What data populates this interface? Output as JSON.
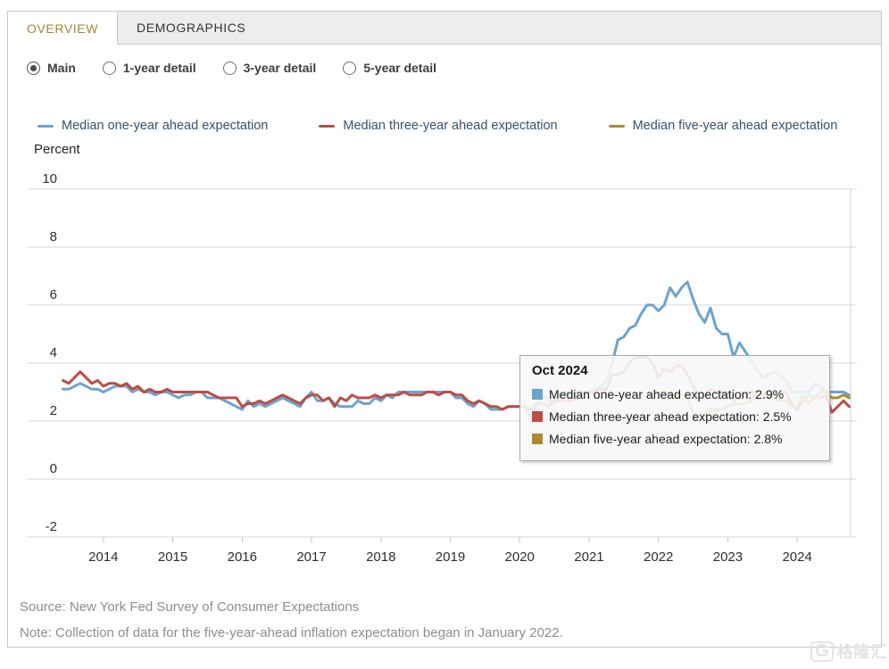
{
  "tabs": [
    {
      "label": "OVERVIEW",
      "active": true
    },
    {
      "label": "DEMOGRAPHICS",
      "active": false
    }
  ],
  "view_options": {
    "selected": "Main",
    "options": [
      "Main",
      "1-year detail",
      "3-year detail",
      "5-year detail"
    ]
  },
  "colors": {
    "active_tab_text": "#a98336",
    "tab_text": "#333333",
    "legend_text": "#36536e",
    "grid": "#d9d9d9",
    "axis_text": "#2e2e2e",
    "footer_text": "#8d8d8d",
    "tooltip_bg": "rgba(247,247,247,0.9)"
  },
  "chart_data": {
    "type": "line",
    "title": "",
    "xlabel": "",
    "ylabel": "Percent",
    "x_unit": "month",
    "x_start": "2013-06",
    "x_end": "2024-10",
    "xticks": [
      2014,
      2015,
      2016,
      2017,
      2018,
      2019,
      2020,
      2021,
      2022,
      2023,
      2024
    ],
    "yticks": [
      10,
      8,
      6,
      4,
      2,
      0,
      -2
    ],
    "ylim": [
      -2,
      10
    ],
    "grid": true,
    "legend_position": "top",
    "series": [
      {
        "key": "one-year",
        "name": "Median one-year ahead expectation",
        "color": "#6ba4ce",
        "start_index": 0,
        "values": [
          3.1,
          3.1,
          3.2,
          3.3,
          3.2,
          3.1,
          3.1,
          3.0,
          3.1,
          3.2,
          3.2,
          3.2,
          3.0,
          3.1,
          3.0,
          3.0,
          2.9,
          3.0,
          3.0,
          2.9,
          2.8,
          2.9,
          2.9,
          3.0,
          3.0,
          2.8,
          2.8,
          2.8,
          2.7,
          2.6,
          2.5,
          2.4,
          2.7,
          2.5,
          2.6,
          2.5,
          2.6,
          2.7,
          2.8,
          2.7,
          2.6,
          2.5,
          2.8,
          3.0,
          2.7,
          2.7,
          2.8,
          2.6,
          2.5,
          2.5,
          2.5,
          2.7,
          2.6,
          2.6,
          2.8,
          2.7,
          2.9,
          2.8,
          3.0,
          3.0,
          3.0,
          3.0,
          3.0,
          3.0,
          3.0,
          3.0,
          3.0,
          3.0,
          2.8,
          2.8,
          2.6,
          2.5,
          2.7,
          2.6,
          2.4,
          2.4,
          2.4,
          2.5,
          2.5,
          2.5,
          2.5,
          2.1,
          2.6,
          2.9,
          2.7,
          2.7,
          2.9,
          3.0,
          2.9,
          3.0,
          3.0,
          3.0,
          3.1,
          3.2,
          3.4,
          4.0,
          4.8,
          4.9,
          5.2,
          5.3,
          5.7,
          6.0,
          6.0,
          5.8,
          6.0,
          6.6,
          6.3,
          6.6,
          6.8,
          6.2,
          5.7,
          5.4,
          5.9,
          5.2,
          5.0,
          5.0,
          4.2,
          4.7,
          4.4,
          4.1,
          3.8,
          3.5,
          3.6,
          3.7,
          3.6,
          3.4,
          3.0,
          3.0,
          3.0,
          3.0,
          3.3,
          3.2,
          3.0,
          3.0,
          3.0,
          3.0,
          2.9
        ]
      },
      {
        "key": "three-year",
        "name": "Median three-year ahead expectation",
        "color": "#bd4c46",
        "start_index": 0,
        "values": [
          3.4,
          3.3,
          3.5,
          3.7,
          3.5,
          3.3,
          3.4,
          3.2,
          3.3,
          3.3,
          3.2,
          3.3,
          3.1,
          3.2,
          3.0,
          3.1,
          3.0,
          3.0,
          3.1,
          3.0,
          3.0,
          3.0,
          3.0,
          3.0,
          3.0,
          3.0,
          2.9,
          2.8,
          2.8,
          2.8,
          2.8,
          2.5,
          2.6,
          2.6,
          2.7,
          2.6,
          2.7,
          2.8,
          2.9,
          2.8,
          2.7,
          2.6,
          2.8,
          2.9,
          2.9,
          2.7,
          2.8,
          2.5,
          2.8,
          2.7,
          2.9,
          2.8,
          2.8,
          2.8,
          2.9,
          2.8,
          2.9,
          2.9,
          2.9,
          3.0,
          2.9,
          2.9,
          2.9,
          3.0,
          3.0,
          2.9,
          3.0,
          3.0,
          2.9,
          2.9,
          2.7,
          2.6,
          2.7,
          2.6,
          2.5,
          2.5,
          2.4,
          2.5,
          2.5,
          2.5,
          2.5,
          2.4,
          2.6,
          2.6,
          2.5,
          2.7,
          2.7,
          2.7,
          2.7,
          2.8,
          3.0,
          3.0,
          3.0,
          3.1,
          3.1,
          3.6,
          3.6,
          3.7,
          4.0,
          4.2,
          4.2,
          4.2,
          4.0,
          3.5,
          3.8,
          3.7,
          3.9,
          3.9,
          3.6,
          3.2,
          2.8,
          2.9,
          3.1,
          3.0,
          3.0,
          3.0,
          2.7,
          2.8,
          2.9,
          3.0,
          3.0,
          2.9,
          2.8,
          3.0,
          3.0,
          3.0,
          2.6,
          2.4,
          2.7,
          2.9,
          2.8,
          2.8,
          2.9,
          2.3,
          2.5,
          2.7,
          2.5
        ]
      },
      {
        "key": "five-year",
        "name": "Median five-year ahead expectation",
        "color": "#ad8b33",
        "start_index": 103,
        "values": [
          3.0,
          3.0,
          2.9,
          2.9,
          2.9,
          2.8,
          2.3,
          2.0,
          2.2,
          2.4,
          2.4,
          2.4,
          2.5,
          2.6,
          2.6,
          2.6,
          2.7,
          3.0,
          2.9,
          3.0,
          2.8,
          2.7,
          2.7,
          2.5,
          2.5,
          2.9,
          2.6,
          2.8,
          3.0,
          3.0,
          2.8,
          2.8,
          2.9,
          2.8
        ]
      }
    ]
  },
  "tooltip": {
    "title": "Oct 2024",
    "rows": [
      {
        "key": "one-year",
        "label": "Median one-year ahead expectation",
        "value": "2.9%"
      },
      {
        "key": "three-year",
        "label": "Median three-year ahead expectation",
        "value": "2.5%"
      },
      {
        "key": "five-year",
        "label": "Median five-year ahead expectation",
        "value": "2.8%"
      }
    ]
  },
  "footer": {
    "source": "Source: New York Fed Survey of Consumer Expectations",
    "note": "Note: Collection of data for the five-year-ahead inflation expectation began in January 2022."
  },
  "watermark": {
    "logo_text": "G",
    "text": "格隆汇"
  }
}
